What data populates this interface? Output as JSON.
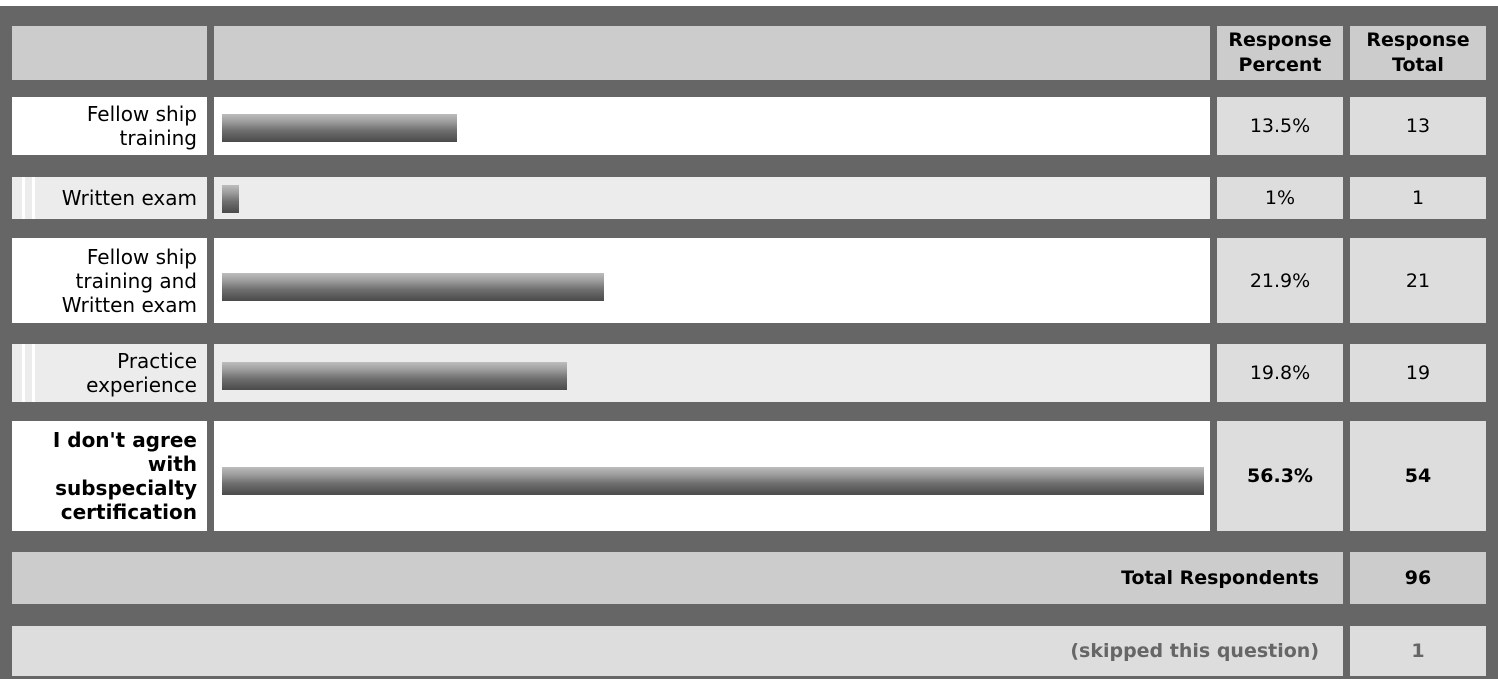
{
  "header": {
    "col_percent": "Response Percent",
    "col_total": "Response Total"
  },
  "chart_data": {
    "type": "bar",
    "categories": [
      "Fellow ship training",
      "Written exam",
      "Fellow ship training and Written exam",
      "Practice experience",
      "I don't agree with subspecialty certification"
    ],
    "values": [
      13.5,
      1,
      21.9,
      19.8,
      56.3
    ],
    "percent_labels": [
      "13.5%",
      "1%",
      "21.9%",
      "19.8%",
      "56.3%"
    ],
    "totals": [
      "13",
      "1",
      "21",
      "19",
      "54"
    ],
    "xlim": [
      0,
      56.3
    ]
  },
  "rows": [
    {
      "label": "Fellow ship training",
      "percent": "13.5%",
      "total": "13"
    },
    {
      "label": "Written exam",
      "percent": "1%",
      "total": "1"
    },
    {
      "label": "Fellow ship training and Written exam",
      "percent": "21.9%",
      "total": "21"
    },
    {
      "label": "Practice experience",
      "percent": "19.8%",
      "total": "19"
    },
    {
      "label": "I don't agree with subspecialty certification",
      "percent": "56.3%",
      "total": "54"
    }
  ],
  "footer": {
    "total_label": "Total Respondents",
    "total_value": "96",
    "skipped_label": "(skipped this question)",
    "skipped_value": "1"
  }
}
